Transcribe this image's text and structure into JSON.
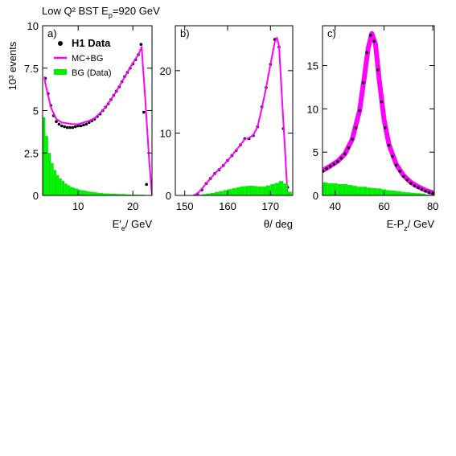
{
  "chart_data": [
    {
      "type": "line",
      "title": [
        "Low Q² BST E",
        "p",
        "=920 GeV"
      ],
      "ylabel": "10³ events",
      "panel_label": "a)",
      "xlabel": [
        "E′",
        "e",
        "/ GeV"
      ],
      "xlim": [
        3.5,
        23.5
      ],
      "ylim": [
        0,
        10
      ],
      "xticks": [
        10,
        20
      ],
      "yticks": [
        0,
        2.5,
        5,
        7.5,
        10
      ],
      "legend": "upper left",
      "series": [
        {
          "name": "H1 Data",
          "type": "scatter",
          "color": "#000000",
          "x": [
            3.5,
            4,
            4.5,
            5,
            5.5,
            6,
            6.5,
            7,
            7.5,
            8,
            8.5,
            9,
            9.5,
            10,
            10.5,
            11,
            11.5,
            12,
            12.5,
            13,
            13.5,
            14,
            14.5,
            15,
            15.5,
            16,
            16.5,
            17,
            17.5,
            18,
            18.5,
            19,
            19.5,
            20,
            20.5,
            21,
            21.5,
            22,
            22.5
          ],
          "values": [
            1.5,
            6.9,
            6.0,
            5.3,
            4.7,
            4.35,
            4.2,
            4.1,
            4.05,
            4.0,
            4.0,
            4.0,
            4.05,
            4.1,
            4.1,
            4.15,
            4.2,
            4.3,
            4.4,
            4.5,
            4.65,
            4.8,
            5.0,
            5.2,
            5.4,
            5.65,
            5.9,
            6.15,
            6.4,
            6.7,
            7.0,
            7.25,
            7.5,
            7.75,
            8.0,
            8.3,
            8.9,
            4.9,
            0.65
          ]
        },
        {
          "name": "MC+BG",
          "type": "line",
          "color": "#ff00ff",
          "x": [
            3.8,
            4,
            5,
            6,
            7,
            8,
            9,
            10,
            11,
            12,
            13,
            14,
            15,
            16,
            17,
            18,
            19,
            20,
            21,
            21.6,
            22.2,
            23,
            23.5
          ],
          "values": [
            7.0,
            6.6,
            5.2,
            4.5,
            4.3,
            4.25,
            4.2,
            4.2,
            4.3,
            4.4,
            4.55,
            4.85,
            5.2,
            5.65,
            6.15,
            6.7,
            7.25,
            7.8,
            8.3,
            8.75,
            6.0,
            2.0,
            0
          ]
        },
        {
          "name": "BG (Data)",
          "type": "histogram",
          "color": "#00ee00",
          "bins": [
            3.5,
            4,
            4.5,
            5,
            5.5,
            6,
            6.5,
            7,
            7.5,
            8,
            8.5,
            9,
            9.5,
            10,
            10.5,
            11,
            11.5,
            12,
            12.5,
            13,
            13.5,
            14,
            14.5,
            15,
            15.5,
            16,
            16.5,
            17,
            17.5,
            18,
            18.5,
            19,
            19.5,
            20,
            20.5,
            21,
            21.5,
            22,
            22.5,
            23
          ],
          "values": [
            4.6,
            3.5,
            2.5,
            1.9,
            1.5,
            1.2,
            1.0,
            0.85,
            0.7,
            0.6,
            0.5,
            0.45,
            0.4,
            0.35,
            0.3,
            0.28,
            0.25,
            0.22,
            0.2,
            0.18,
            0.15,
            0.15,
            0.12,
            0.12,
            0.1,
            0.1,
            0.1,
            0.08,
            0.08,
            0.08,
            0.06,
            0.06,
            0.05,
            0.05,
            0.05,
            0.04,
            0.04,
            0.03,
            0.02
          ]
        }
      ]
    },
    {
      "type": "line",
      "panel_label": "b)",
      "xlabel": [
        "θ/ deg"
      ],
      "xlim": [
        147.8,
        175.2
      ],
      "ylim": [
        0,
        27.2
      ],
      "xticks": [
        150,
        160,
        170
      ],
      "yticks": [
        0,
        10,
        20
      ],
      "series": [
        {
          "type": "scatter",
          "color": "#000000",
          "x": [
            153,
            154,
            155,
            156,
            157,
            158,
            159,
            160,
            161,
            162,
            163,
            164,
            165,
            166,
            167,
            168,
            169,
            170,
            171,
            172,
            173,
            174
          ],
          "values": [
            0.25,
            0.9,
            1.9,
            2.7,
            3.5,
            4.1,
            4.8,
            5.6,
            6.4,
            7.2,
            8.1,
            9.1,
            9.1,
            9.6,
            11.0,
            14.2,
            17.3,
            21.0,
            25.0,
            23.8,
            10.7,
            1.3
          ]
        },
        {
          "type": "line",
          "color": "#ff00ff",
          "x": [
            152,
            153,
            155,
            157,
            159,
            161,
            163,
            164,
            165,
            166,
            167,
            168,
            169,
            170,
            171,
            171.5,
            172,
            173,
            174
          ],
          "values": [
            0,
            0.3,
            1.9,
            3.5,
            4.8,
            6.4,
            8.1,
            9.0,
            9.2,
            9.7,
            11.0,
            14.0,
            17.3,
            21.0,
            24.5,
            25.3,
            24.0,
            12.0,
            0
          ]
        },
        {
          "type": "histogram",
          "color": "#00ee00",
          "bins": [
            150,
            151,
            152,
            153,
            154,
            155,
            156,
            157,
            158,
            159,
            160,
            161,
            162,
            163,
            164,
            165,
            166,
            167,
            168,
            169,
            170,
            171,
            172,
            173,
            174,
            175
          ],
          "values": [
            0,
            0,
            0.05,
            0.1,
            0.2,
            0.3,
            0.4,
            0.55,
            0.7,
            0.85,
            1.0,
            1.15,
            1.3,
            1.45,
            1.5,
            1.55,
            1.5,
            1.45,
            1.4,
            1.6,
            1.8,
            2.0,
            2.3,
            1.9,
            0.6
          ]
        }
      ]
    },
    {
      "type": "line",
      "panel_label": "c)",
      "xlabel": [
        "E-P",
        "z",
        "/ GeV"
      ],
      "xlim": [
        34.8,
        80.6
      ],
      "ylim": [
        0,
        19.6
      ],
      "xticks": [
        40,
        60,
        80
      ],
      "yticks": [
        0,
        5,
        10,
        15
      ],
      "series": [
        {
          "type": "line",
          "color": "#ff00ff",
          "x": [
            35,
            38,
            41,
            44,
            47,
            50,
            52,
            53.5,
            55,
            56.5,
            58,
            60,
            62,
            65,
            68,
            71,
            74,
            77,
            80
          ],
          "values": [
            2.9,
            3.4,
            3.95,
            4.8,
            6.5,
            9.8,
            13.8,
            17.0,
            18.7,
            17.5,
            13.5,
            8.8,
            5.9,
            3.6,
            2.3,
            1.5,
            1.0,
            0.6,
            0.3
          ]
        },
        {
          "type": "histogram",
          "color": "#00ee00",
          "bins": [
            35,
            37,
            39,
            41,
            43,
            45,
            47,
            49,
            51,
            53,
            55,
            57,
            59,
            61,
            63,
            65,
            67,
            69,
            71,
            73,
            75,
            77,
            79
          ],
          "values": [
            1.5,
            1.4,
            1.4,
            1.3,
            1.3,
            1.2,
            1.1,
            1.0,
            1.0,
            0.9,
            0.85,
            0.8,
            0.7,
            0.6,
            0.55,
            0.5,
            0.4,
            0.35,
            0.3,
            0.25,
            0.2,
            0.1
          ]
        },
        {
          "type": "scatter",
          "color": "#000000",
          "x": [
            35,
            36.5,
            38,
            39.5,
            41,
            42.5,
            44,
            45.5,
            47,
            48.5,
            50,
            51.5,
            53,
            54.5,
            56,
            57.5,
            59,
            60.5,
            62,
            63.5,
            65,
            66.5,
            68,
            69.5,
            71,
            72.5,
            74,
            75.5,
            77,
            78.5,
            80
          ],
          "values": [
            2.8,
            3.1,
            3.35,
            3.6,
            3.9,
            4.3,
            4.8,
            5.5,
            6.5,
            7.8,
            9.8,
            13.0,
            16.5,
            18.5,
            17.8,
            14.5,
            10.8,
            7.8,
            5.8,
            4.5,
            3.5,
            2.8,
            2.2,
            1.8,
            1.4,
            1.1,
            0.9,
            0.7,
            0.5,
            0.35,
            0.25
          ]
        }
      ]
    }
  ]
}
